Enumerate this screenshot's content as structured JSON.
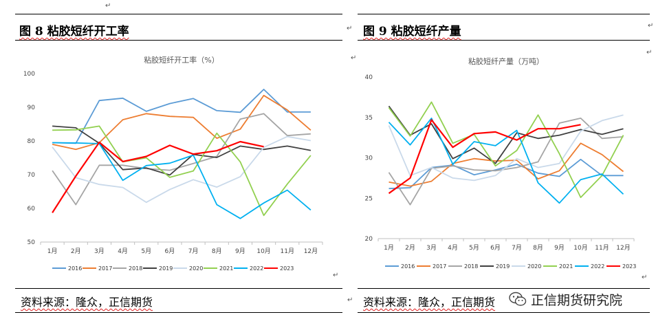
{
  "left": {
    "figure_title": "图 8  粘胶短纤开工率",
    "source": "资料来源：隆众，正信期货"
  },
  "right": {
    "figure_title": "图 9  粘胶短纤产量",
    "source": "资料来源：隆众，正信期货"
  },
  "watermark": {
    "text": "正信期货研究院",
    "icon": "wechat-icon"
  },
  "paragraph_mark": "↵",
  "colors": {
    "2016": "#5B9BD5",
    "2017": "#ED7D31",
    "2018": "#A5A5A5",
    "2019": "#404040",
    "2020": "#C9D9EA",
    "2021": "#92D050",
    "2022": "#00B0F0",
    "2023": "#FF0000"
  },
  "chart_data": [
    {
      "type": "line",
      "title": "粘胶短纤开工率（%）",
      "categories": [
        "1月",
        "2月",
        "3月",
        "4月",
        "5月",
        "6月",
        "7月",
        "8月",
        "9月",
        "10月",
        "11月",
        "12月"
      ],
      "ylim": [
        50,
        100
      ],
      "yticks": [
        50,
        60,
        70,
        80,
        90,
        100
      ],
      "grid": false,
      "legend": "bottom",
      "series": [
        {
          "name": "2016",
          "values": [
            79.5,
            79.3,
            92.0,
            92.7,
            88.8,
            91.1,
            92.6,
            89.0,
            88.5,
            95.3,
            88.6,
            88.6
          ]
        },
        {
          "name": "2017",
          "values": [
            79.0,
            77.5,
            79.5,
            86.3,
            88.1,
            87.3,
            87.0,
            80.8,
            83.5,
            93.5,
            89.2,
            83.2
          ]
        },
        {
          "name": "2018",
          "values": [
            71.2,
            61.1,
            72.8,
            72.8,
            71.8,
            71.3,
            73.3,
            75.4,
            86.5,
            88.1,
            81.6,
            82.1
          ]
        },
        {
          "name": "2019",
          "values": [
            84.4,
            83.9,
            79.3,
            71.5,
            72.0,
            69.9,
            76.0,
            75.1,
            78.5,
            77.5,
            78.5,
            77.2
          ]
        },
        {
          "name": "2020",
          "values": [
            78.2,
            69.1,
            67.1,
            66.2,
            61.8,
            65.6,
            68.5,
            66.3,
            69.4,
            78.1,
            81.3,
            80.1
          ]
        },
        {
          "name": "2021",
          "values": [
            83.2,
            83.3,
            84.4,
            73.8,
            75.0,
            69.2,
            71.1,
            82.3,
            73.8,
            57.9,
            67.2,
            75.7
          ]
        },
        {
          "name": "2022",
          "values": [
            79.5,
            79.4,
            79.2,
            68.3,
            72.7,
            73.4,
            75.8,
            61.1,
            57.0,
            61.6,
            65.4,
            59.5
          ]
        },
        {
          "name": "2023",
          "values": [
            58.7,
            69.6,
            79.6,
            73.9,
            75.4,
            78.7,
            76.1,
            77.1,
            79.8,
            78.3,
            null,
            null
          ]
        }
      ]
    },
    {
      "type": "line",
      "title": "粘胶短纤产量（万吨）",
      "categories": [
        "1月",
        "2月",
        "3月",
        "4月",
        "5月",
        "6月",
        "7月",
        "8月",
        "9月",
        "10月",
        "11月",
        "12月"
      ],
      "ylim": [
        20,
        40
      ],
      "yticks": [
        20,
        25,
        30,
        35,
        40
      ],
      "grid": false,
      "legend": "bottom",
      "series": [
        {
          "name": "2016",
          "values": [
            26.2,
            26.3,
            28.8,
            29.1,
            27.9,
            28.5,
            29.2,
            28.1,
            27.7,
            29.8,
            27.8,
            27.8
          ]
        },
        {
          "name": "2017",
          "values": [
            27.0,
            26.5,
            27.1,
            29.3,
            29.9,
            29.6,
            29.7,
            27.4,
            28.4,
            31.8,
            30.4,
            28.3
          ]
        },
        {
          "name": "2018",
          "values": [
            28.2,
            24.2,
            28.7,
            29.0,
            28.5,
            28.4,
            28.8,
            29.5,
            34.3,
            34.9,
            32.4,
            32.6
          ]
        },
        {
          "name": "2019",
          "values": [
            36.4,
            32.8,
            34.2,
            29.9,
            31.2,
            29.3,
            33.1,
            32.4,
            32.8,
            33.5,
            32.9,
            33.6
          ]
        },
        {
          "name": "2020",
          "values": [
            34.0,
            27.8,
            28.8,
            27.5,
            27.2,
            27.8,
            29.9,
            28.8,
            29.3,
            33.3,
            34.6,
            35.3
          ]
        },
        {
          "name": "2021",
          "values": [
            36.2,
            32.7,
            36.9,
            31.8,
            32.9,
            29.0,
            30.9,
            35.3,
            30.5,
            25.1,
            27.8,
            32.8
          ]
        },
        {
          "name": "2022",
          "values": [
            34.4,
            31.6,
            34.9,
            29.2,
            32.0,
            31.5,
            33.4,
            26.9,
            24.4,
            27.3,
            28.0,
            25.5
          ]
        },
        {
          "name": "2023",
          "values": [
            25.6,
            27.5,
            34.7,
            31.3,
            33.0,
            33.2,
            32.2,
            33.6,
            33.6,
            34.1,
            null,
            null
          ]
        }
      ]
    }
  ]
}
